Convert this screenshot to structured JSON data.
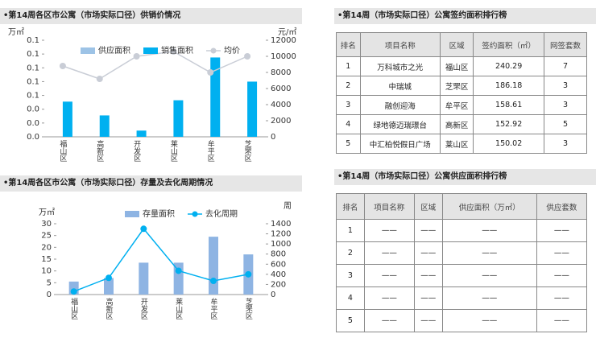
{
  "chart_data": [
    {
      "type": "bar",
      "title": "•第14周各区市公寓（市场实际口径）供销价情况",
      "y_unit": "万㎡",
      "y2_unit": "元/㎡",
      "categories": [
        "福山区",
        "高新区",
        "开发区",
        "莱山区",
        "牟平区",
        "芝罘区"
      ],
      "series": [
        {
          "name": "供应面积",
          "color": "#9dc3e6",
          "type": "bar",
          "values": [
            0,
            0,
            0,
            0,
            0,
            0
          ]
        },
        {
          "name": "销售面积",
          "color": "#00b0f0",
          "type": "bar",
          "values": [
            0.051,
            0.031,
            0.009,
            0.053,
            0.115,
            0.08
          ]
        },
        {
          "name": "均价",
          "color": "#c9cdd6",
          "type": "line",
          "axis": "y2",
          "values": [
            8800,
            7200,
            10000,
            10600,
            8000,
            10000
          ]
        }
      ],
      "ylim": [
        0,
        0.14
      ],
      "yticks": [
        {
          "value": 0,
          "label": "0.0"
        },
        {
          "value": 0.02,
          "label": "0.0"
        },
        {
          "value": 0.04,
          "label": "0.0"
        },
        {
          "value": 0.06,
          "label": "0.1"
        },
        {
          "value": 0.08,
          "label": "0.1"
        },
        {
          "value": 0.1,
          "label": "0.1"
        },
        {
          "value": 0.12,
          "label": "0.1"
        },
        {
          "value": 0.14,
          "label": "0.1"
        }
      ],
      "y2lim": [
        0,
        12000
      ],
      "y2ticks": [
        0,
        2000,
        4000,
        6000,
        8000,
        10000,
        12000
      ],
      "grid": false,
      "legend": "top"
    },
    {
      "type": "bar",
      "title": "•第14周各区市公寓（市场实际口径）存量及去化周期情况",
      "y_unit": "万㎡",
      "y2_unit": "周",
      "categories": [
        "福山区",
        "高新区",
        "开发区",
        "莱山区",
        "牟平区",
        "芝罘区"
      ],
      "series": [
        {
          "name": "存量面积",
          "color": "#8eb4e3",
          "type": "bar",
          "values": [
            5.5,
            7,
            13.5,
            13.5,
            24.5,
            17
          ]
        },
        {
          "name": "去化周期",
          "color": "#00b0f0",
          "type": "line",
          "axis": "y2",
          "values": [
            60,
            330,
            1300,
            470,
            270,
            400
          ]
        }
      ],
      "ylim": [
        0,
        30
      ],
      "yticks": [
        0,
        5,
        10,
        15,
        20,
        25,
        30
      ],
      "y2lim": [
        0,
        1400
      ],
      "y2ticks": [
        0,
        200,
        400,
        600,
        800,
        1000,
        1200,
        1400
      ],
      "grid": false,
      "legend": "top"
    }
  ],
  "tables": [
    {
      "title": "•第14周（市场实际口径）公寓签约面积排行榜",
      "header": [
        "排名",
        "项目名称",
        "区域",
        "签约面积（㎡）",
        "网签套数"
      ],
      "rows": [
        [
          "1",
          "万科城市之光",
          "福山区",
          "240.29",
          "7"
        ],
        [
          "2",
          "中瑞城",
          "芝罘区",
          "186.18",
          "3"
        ],
        [
          "3",
          "融创迎海",
          "牟平区",
          "158.61",
          "3"
        ],
        [
          "4",
          "绿地德迈瑞璟台",
          "高新区",
          "152.92",
          "5"
        ],
        [
          "5",
          "中汇柏悦假日广场",
          "莱山区",
          "150.02",
          "3"
        ]
      ]
    },
    {
      "title": "•第14周（市场实际口径）公寓供应面积排行榜",
      "header": [
        "排名",
        "项目名称",
        "区域",
        "供应面积（万㎡）",
        "供应套数"
      ],
      "rows": [
        [
          "1",
          "——",
          "——",
          "——",
          "——"
        ],
        [
          "2",
          "——",
          "——",
          "——",
          "——"
        ],
        [
          "3",
          "——",
          "——",
          "——",
          "——"
        ],
        [
          "4",
          "——",
          "——",
          "——",
          "——"
        ],
        [
          "5",
          "——",
          "——",
          "——",
          "——"
        ]
      ]
    }
  ]
}
